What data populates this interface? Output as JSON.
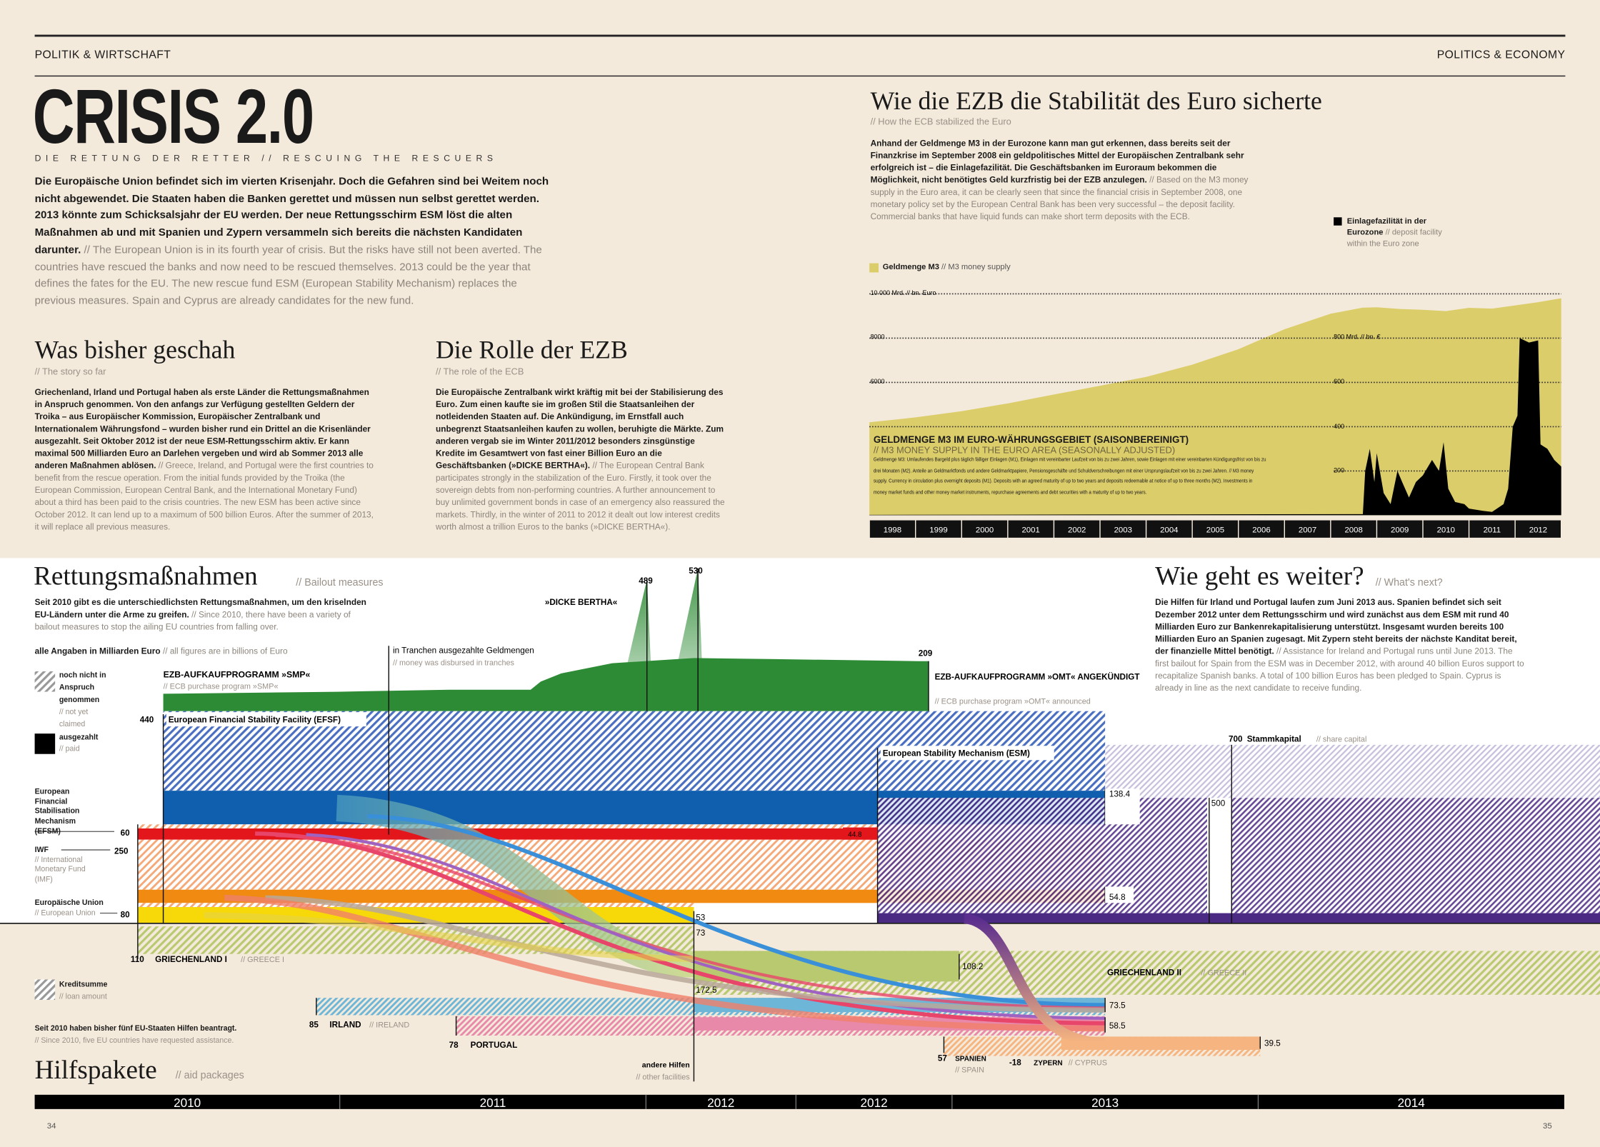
{
  "header": {
    "left": "POLITIK & WIRTSCHAFT",
    "right": "POLITICS & ECONOMY"
  },
  "title": "CRISIS 2.0",
  "subtitle": "DIE RETTUNG DER RETTER // RESCUING THE RESCUERS",
  "intro": {
    "de": "Die Europäische Union befindet sich im vierten Krisenjahr. Doch die Gefahren sind bei Weitem noch nicht abgewendet. Die Staaten haben die Banken gerettet und müssen nun selbst gerettet werden. 2013 könnte zum Schicksalsjahr der EU werden. Der neue Rettungsschirm ESM löst die alten Maßnahmen ab und mit Spanien und Zypern versammeln sich bereits die nächsten Kandidaten darunter.",
    "en": " // The European Union is in its fourth year of crisis. But the risks have still not been averted. The countries have rescued the banks and now need to be rescued themselves. 2013 could be the year that defines the fates for the EU. The new rescue fund ESM (European Stability Mechanism) replaces the previous measures. Spain and Cyprus are already candidates for the new fund."
  },
  "story": {
    "title": "Was bisher geschah",
    "sub": "// The story so far",
    "de": "Griechenland, Irland und Portugal haben als erste Länder die Rettungsmaßnahmen in Anspruch genommen. Von den anfangs zur Verfügung gestellten Geldern der Troika – aus Europäischer Kommission, Europäischer Zentralbank und Internationalem Währungsfond – wurden bisher rund ein Drittel an die Krisenländer ausgezahlt. Seit Oktober 2012 ist der neue ESM-Rettungsschirm aktiv. Er kann maximal 500 Milliarden Euro an Darlehen vergeben und wird ab Sommer 2013 alle anderen Maßnahmen ablösen.",
    "en": " // Greece, Ireland, and Portugal were the first countries to benefit from the rescue operation. From the initial funds provided by the Troika (the European Commission, European Central Bank, and the International Monetary Fund) about a third has been paid to the crisis countries. The new ESM has been active since October 2012. It can lend up to a maximum of 500 billion Euros. After the summer of 2013, it will replace all previous measures."
  },
  "ecb_role": {
    "title": "Die Rolle der EZB",
    "sub": "// The role of the ECB",
    "de": "Die Europäische Zentralbank wirkt kräftig mit bei der Stabilisierung des Euro. Zum einen kaufte sie im großen Stil die Staatsanleihen der notleidenden Staaten auf. Die Ankündigung, im Ernstfall auch unbegrenzt Staatsanleihen kaufen zu wollen, beruhigte die Märkte. Zum anderen vergab sie im Winter 2011/2012 besonders zinsgünstige Kredite im Gesamtwert von fast einer Billion Euro an die Geschäftsbanken (»DICKE BERTHA«).",
    "en": " // The European Central Bank participates strongly in the stabilization of the Euro. Firstly, it took over the sovereign debts from non-performing countries. A further announcement to buy unlimited government bonds in case of an emergency also reassured the markets. Thirdly, in the winter of 2011 to 2012 it dealt out low interest credits worth almost a trillion Euros to the banks (»DICKE BERTHA«)."
  },
  "ezb": {
    "title": "Wie die EZB die Stabilität des Euro sicherte",
    "sub": "// How the ECB stabilized the Euro",
    "de": "Anhand der Geldmenge M3 in der Eurozone kann man gut erkennen, dass bereits seit der Finanzkrise im September 2008 ein geldpolitisches Mittel der Europäischen Zentralbank sehr erfolgreich ist – die Einlagefazilität. Die Geschäftsbanken im Euroraum bekommen die Möglichkeit, nicht benötigtes Geld kurzfristig bei der EZB anzulegen.",
    "en": " // Based on the M3 money supply in the Euro area, it can be clearly seen that since the financial crisis in September 2008, one monetary policy set by the European Central Bank has been very successful – the deposit facility. Commercial banks that have liquid funds can make short term deposits with the ECB."
  },
  "page_numbers": {
    "left": "34",
    "right": "35"
  },
  "chart_data": [
    {
      "type": "area",
      "title": "GELDMENGE M3 IM EURO-WÄHRUNGSGEBIET (SAISONBEREINIGT)",
      "subtitle": "// M3 MONEY SUPPLY IN THE EURO AREA (SEASONALLY ADJUSTED)",
      "note": "Geldmenge M3: Umlaufendes Bargeld plus täglich fälliger Einlagen (M1), Einlagen mit vereinbarter Laufzeit von bis zu zwei Jahren, sowie Einlagen mit einer vereinbarten Kündigungsfrist von bis zu drei Monaten (M2). Anteile an Geldmarktfonds und andere Geldmarktpapiere, Pensionsgeschäfte und Schuldverschreibungen mit einer Ursprungslaufzeit von bis zu zwei Jahren. // M3 money supply. Currency in circulation plus overnight deposits (M1). Deposits with an agreed maturity of up to two years and deposits redeemable at notice of up to three months (M2). Investments in money market funds and other money market instruments, repurchase agreements and debt securities with a maturity of up to two years.",
      "categories": [
        "1998",
        "1999",
        "2000",
        "2001",
        "2002",
        "2003",
        "2004",
        "2005",
        "2006",
        "2007",
        "2008",
        "2009",
        "2010",
        "2011",
        "2012"
      ],
      "left_axis": {
        "label": "10 000 Mrd. // bn. Euro",
        "ticks": [
          "8000",
          "6000"
        ],
        "range": [
          0,
          10000
        ]
      },
      "right_axis": {
        "label": "800 Mrd. // bn. €",
        "ticks": [
          "600",
          "400",
          "200"
        ],
        "range": [
          0,
          1000
        ]
      },
      "grid": true,
      "series": [
        {
          "name": "Geldmenge M3 // M3 money supply",
          "legend_de": "Geldmenge M3",
          "legend_en": "// M3 money supply",
          "color": "#dccd6b",
          "axis": "left",
          "x": [
            1998,
            1999,
            2000,
            2001,
            2002,
            2003,
            2004,
            2005,
            2006,
            2007,
            2008,
            2008.7,
            2009,
            2009.5,
            2010,
            2010.5,
            2011,
            2011.5,
            2012,
            2012.5,
            2013
          ],
          "y": [
            4200,
            4420,
            4700,
            5050,
            5450,
            5850,
            6250,
            6800,
            7500,
            8400,
            9100,
            9380,
            9390,
            9320,
            9280,
            9220,
            9370,
            9330,
            9480,
            9620,
            9800
          ]
        },
        {
          "name": "Einlagefazilität in der Eurozone // deposit facility within the Euro zone",
          "legend_de": "Einlagefazilität in der Eurozone",
          "legend_en": "// deposit facility within the Euro zone",
          "color": "#000000",
          "axis": "right",
          "x": [
            1998,
            2008.7,
            2008.75,
            2008.85,
            2008.95,
            2009.0,
            2009.15,
            2009.3,
            2009.45,
            2009.55,
            2009.7,
            2009.85,
            2010.0,
            2010.2,
            2010.35,
            2010.45,
            2010.55,
            2010.7,
            2010.9,
            2011.0,
            2011.3,
            2011.5,
            2011.75,
            2011.85,
            2011.95,
            2012.05,
            2012.1,
            2012.3,
            2012.5,
            2012.55,
            2012.7,
            2012.85,
            2013
          ],
          "y": [
            2,
            5,
            200,
            300,
            150,
            280,
            100,
            50,
            200,
            150,
            80,
            150,
            180,
            250,
            200,
            330,
            120,
            60,
            50,
            30,
            20,
            15,
            50,
            120,
            400,
            450,
            800,
            780,
            790,
            320,
            300,
            250,
            220
          ]
        }
      ]
    },
    {
      "type": "bar",
      "title": "Rettungsmaßnahmen",
      "subtitle": "// Bailout measures",
      "intro_de": "Seit 2010 gibt es die unterschiedlichsten Rettungsmaßnahmen, um den kriselnden EU-Ländern unter die Arme zu greifen.",
      "intro_en": " // Since 2010, there have been a variety of bailout measures to stop the ailing EU countries from falling over.",
      "units_de": "alle Angaben in Milliarden Euro",
      "units_en": "// all figures are in billions of Euro",
      "legend": {
        "unclaimed_de": "noch nicht in Anspruch genommen",
        "unclaimed_en": "// not yet claimed",
        "paid_de": "ausgezahlt",
        "paid_en": "// paid",
        "loan_de": "Kreditsumme",
        "loan_en": "// loan amount"
      },
      "time_axis": [
        "2010",
        "2011",
        "2012",
        "2012",
        "2013",
        "2014"
      ],
      "measures": {
        "smp": {
          "de": "EZB-AUFKAUFPROGRAMM »SMP«",
          "en": "// ECB purchase program »SMP«",
          "value": "209",
          "color": "#2e8b35"
        },
        "tranches": {
          "de": "in Tranchen ausgezahlte Geldmengen",
          "en": "// money was disbursed in tranches"
        },
        "bertha": {
          "label": "»DICKE BERTHA«",
          "values": [
            "489",
            "530"
          ]
        },
        "omt": {
          "de": "EZB-AUFKAUFPROGRAMM »OMT« ANGEKÜNDIGT",
          "en": "// ECB purchase program »OMT« announced"
        },
        "efsf": {
          "label": "European Financial Stability Facility (EFSF)",
          "total": "440",
          "paid": "138.4",
          "color": "#0f5fae"
        },
        "efsm": {
          "label": "European Financial Stabilisation Mechanism (EFSM)",
          "total": "60",
          "paid": "44.8",
          "color": "#e3161b"
        },
        "imf": {
          "label": "IWF",
          "en": "// International Monetary Fund (IMF)",
          "total": "250",
          "paid": "54.8",
          "color": "#f08a10"
        },
        "eu": {
          "label": "Europäische Union",
          "en": "// European Union",
          "total": "80",
          "paid": "53",
          "color": "#f7d90a"
        },
        "esm": {
          "label": "European Stability Mechanism (ESM)",
          "lending": "500",
          "capital": "700",
          "capital_de": "Stammkapital",
          "capital_en": "// share capital",
          "color": "#4b2a83"
        }
      },
      "packages_title": "Hilfspakete",
      "packages_sub": "// aid packages",
      "packages_note_de": "Seit 2010 haben bisher fünf EU-Staaten Hilfen beantragt.",
      "packages_note_en": "// Since 2010, five EU countries have requested assistance.",
      "other_de": "andere Hilfen",
      "other_en": "// other facilities",
      "packages": [
        {
          "de": "GRIECHENLAND I",
          "en": "// GREECE I",
          "total": "110",
          "paid": "73",
          "color": "#b9c970"
        },
        {
          "de": "GRIECHENLAND II",
          "en": "// GREECE II",
          "total": "172.5",
          "paid": "108.2",
          "color": "#b9c970"
        },
        {
          "de": "IRLAND",
          "en": "// IRELAND",
          "total": "85",
          "paid": "73.5",
          "color": "#6db6d8"
        },
        {
          "de": "PORTUGAL",
          "en": "",
          "total": "78",
          "paid": "58.5",
          "color": "#e889aa"
        },
        {
          "de": "SPANIEN",
          "en": "// SPAIN",
          "total": "57",
          "paid": "39.5",
          "color": "#f6b580"
        },
        {
          "de": "ZYPERN",
          "en": "// CYPRUS",
          "total": "-18",
          "paid": "",
          "color": "#f6b580"
        }
      ]
    }
  ],
  "outlook": {
    "title": "Wie geht es weiter?",
    "sub": "// What's next?",
    "de": "Die Hilfen für Irland und Portugal laufen zum Juni 2013 aus. Spanien befindet sich seit Dezember 2012 unter dem Rettungsschirm und wird zunächst aus dem ESM mit rund 40 Milliarden Euro zur Bankenrekapitalisierung unterstützt. Insgesamt wurden bereits 100 Milliarden Euro an Spanien zugesagt. Mit Zypern steht bereits der nächste Kanditat bereit, der finanzielle Mittel benötigt.",
    "en": " // Assistance for Ireland and Portugal runs until June 2013. The first bailout for Spain from the ESM was in December 2012, with around 40 billion Euros support to recapitalize Spanish banks. A total of 100 billion Euros has been pledged to Spain. Cyprus is already in line as the next candidate to receive funding."
  }
}
